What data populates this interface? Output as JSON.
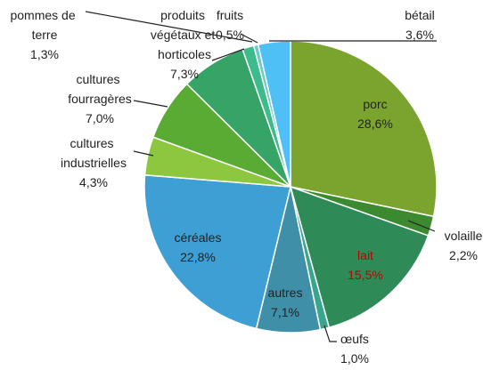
{
  "chart_data": {
    "type": "pie",
    "categories": [
      "porc",
      "volaille",
      "lait",
      "œufs",
      "autres",
      "céréales",
      "cultures industrielles",
      "cultures fourragères",
      "produits végétaux et horticoles",
      "pommes de terre",
      "fruits",
      "bétail"
    ],
    "values": [
      28.6,
      2.2,
      15.5,
      1.0,
      7.1,
      22.8,
      4.3,
      7.0,
      7.3,
      1.3,
      0.5,
      3.6
    ],
    "value_labels": [
      "28,6%",
      "2,2%",
      "15,5%",
      "1,0%",
      "7,1%",
      "22,8%",
      "4,3%",
      "7,0%",
      "7,3%",
      "1,3%",
      "0,5%",
      "3,6%"
    ],
    "colors": [
      "#7ba42f",
      "#3b8a2f",
      "#2e8b57",
      "#3aa58e",
      "#3f8fa8",
      "#3d9fd3",
      "#8dc63f",
      "#5aab34",
      "#36a466",
      "#3dbb8c",
      "#66ccc4",
      "#4fc0f5"
    ]
  }
}
